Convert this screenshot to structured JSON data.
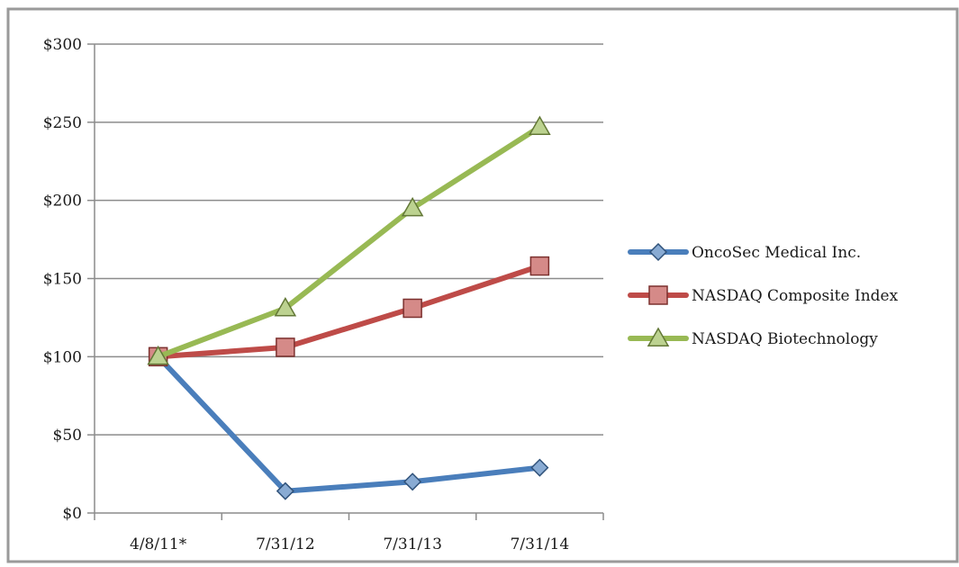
{
  "chart_data": {
    "type": "line",
    "title": "",
    "xlabel": "",
    "ylabel": "",
    "categories": [
      "4/8/11*",
      "7/31/12",
      "7/31/13",
      "7/31/14"
    ],
    "ylim": [
      0,
      300
    ],
    "yticks": [
      0,
      50,
      100,
      150,
      200,
      250,
      300
    ],
    "ytick_labels": [
      "$0",
      "$50",
      "$100",
      "$150",
      "$200",
      "$250",
      "$300"
    ],
    "grid": true,
    "legend_position": "right",
    "series": [
      {
        "name": "OncoSec Medical Inc.",
        "values": [
          100,
          14,
          20,
          29
        ],
        "color": "#4a7ebb",
        "marker": "diamond"
      },
      {
        "name": "NASDAQ Composite Index",
        "values": [
          100,
          106,
          131,
          158
        ],
        "color": "#be4b48",
        "marker": "square"
      },
      {
        "name": "NASDAQ Biotechnology",
        "values": [
          100,
          131,
          195,
          247
        ],
        "color": "#98b954",
        "marker": "triangle"
      }
    ]
  }
}
